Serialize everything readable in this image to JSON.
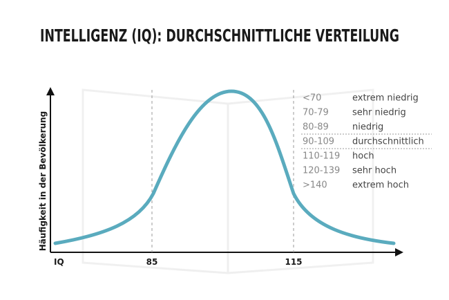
{
  "header": {
    "title": "INTELLIGENZ (IQ): DURCHSCHNITTLICHE VERTEILUNG"
  },
  "axis": {
    "y_label": "Häufigkeit in der Bevölkerung",
    "x_labels": [
      "IQ",
      "85",
      "115"
    ]
  },
  "legend": {
    "rows": [
      [
        "<70",
        "extrem niedrig"
      ],
      [
        "70-79",
        "sehr niedrig"
      ],
      [
        "80-89",
        "niedrig"
      ],
      [
        "90-109",
        "durchschnittlich"
      ],
      [
        "110-119",
        "hoch"
      ],
      [
        "120-139",
        "sehr hoch"
      ],
      [
        ">140",
        "extrem hoch"
      ]
    ]
  }
}
